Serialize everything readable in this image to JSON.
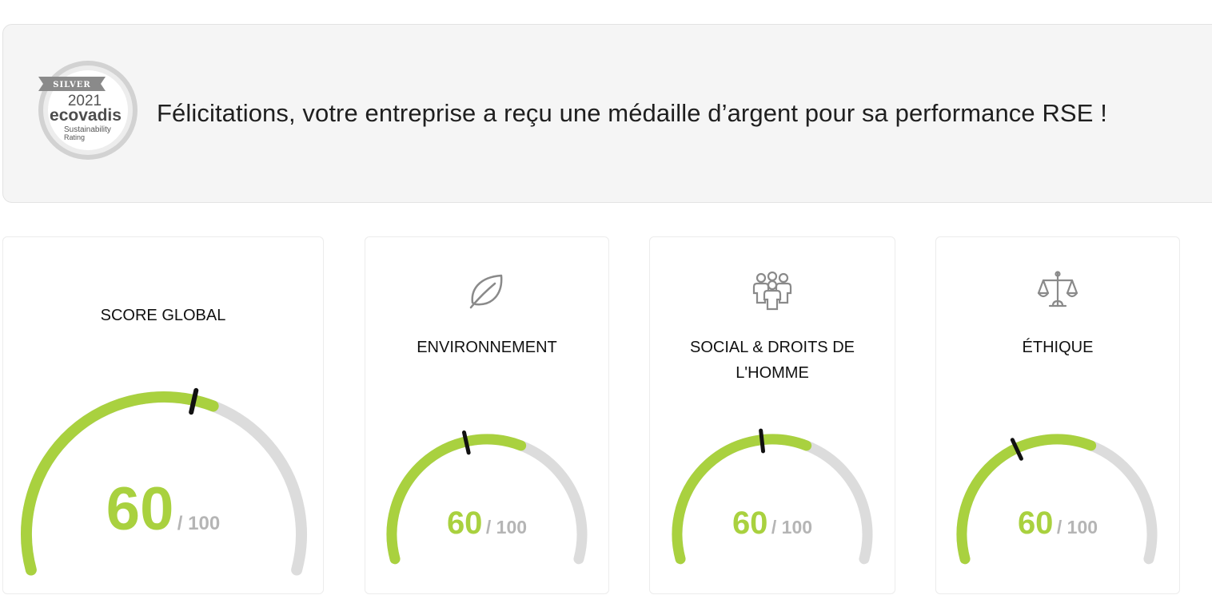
{
  "banner": {
    "message": "Félicitations, votre entreprise a reçu une médaille d’argent pour sa performance RSE !",
    "medal": {
      "ribbon": "SILVER",
      "year": "2021",
      "brand": "ecovadis",
      "line1": "Sustainability",
      "line2": "Rating"
    }
  },
  "colors": {
    "accent": "#a9d13f",
    "track": "#dcdcdc",
    "marker": "#111111",
    "max_text": "#b5b5b5"
  },
  "cards": [
    {
      "title": "SCORE GLOBAL",
      "icon": null,
      "score": "60",
      "max": "/ 100",
      "value": 60,
      "marker": 56
    },
    {
      "title": "ENVIRONNEMENT",
      "icon": "leaf-icon",
      "score": "60",
      "max": "/ 100",
      "value": 60,
      "marker": 44
    },
    {
      "title": "SOCIAL & DROITS DE L'HOMME",
      "icon": "people-icon",
      "score": "60",
      "max": "/ 100",
      "value": 60,
      "marker": 47
    },
    {
      "title": "ÉTHIQUE",
      "icon": "scales-icon",
      "score": "60",
      "max": "/ 100",
      "value": 60,
      "marker": 38
    }
  ]
}
